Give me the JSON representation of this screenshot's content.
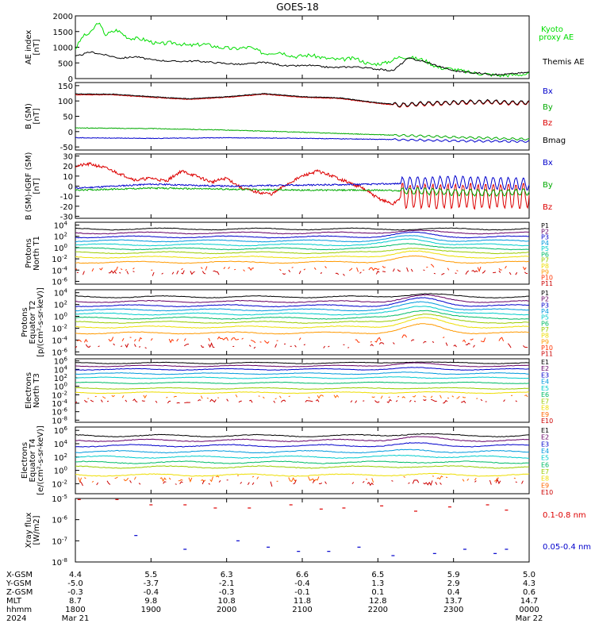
{
  "figure": {
    "title": "GOES-18",
    "x_axis": {
      "time_range": [
        "2024-03-21 18:00",
        "2024-03-22 00:00"
      ],
      "tick_times": [
        "1800",
        "1900",
        "2000",
        "2100",
        "2200",
        "2300",
        "0000"
      ],
      "row_labels": [
        "X-GSM",
        "Y-GSM",
        "Z-GSM",
        "MLT",
        "hhmm",
        "2024"
      ],
      "rows": [
        [
          "4.4",
          "5.5",
          "6.3",
          "6.6",
          "6.5",
          "5.9",
          "5.0"
        ],
        [
          "-5.0",
          "-3.7",
          "-2.1",
          "-0.4",
          "1.3",
          "2.9",
          "4.3"
        ],
        [
          "-0.3",
          "-0.4",
          "-0.3",
          "-0.1",
          "0.1",
          "0.4",
          "0.6"
        ],
        [
          "8.7",
          "9.8",
          "10.8",
          "11.8",
          "12.8",
          "13.7",
          "14.7"
        ],
        [
          "1800",
          "1900",
          "2000",
          "2100",
          "2200",
          "2300",
          "0000"
        ]
      ],
      "date_start": "Mar 21",
      "date_end": "Mar 22"
    }
  },
  "chart_data": [
    {
      "panel": "ae",
      "type": "line",
      "ylabel": "AE index [nT]",
      "ylim": [
        0,
        2000
      ],
      "yticks": [
        "0",
        "500",
        "1000",
        "1500",
        "2000"
      ],
      "legend": [
        {
          "label": "Kyoto proxy AE",
          "color": "#00dd00"
        },
        {
          "label": "Themis AE",
          "color": "#000000"
        }
      ],
      "series": [
        {
          "name": "Kyoto proxy AE",
          "color": "#00dd00",
          "x_hours": [
            18.0,
            18.1,
            18.2,
            18.3,
            18.4,
            18.55,
            18.7,
            18.9,
            19.1,
            19.3,
            19.5,
            19.7,
            19.9,
            20.1,
            20.3,
            20.5,
            20.7,
            20.9,
            21.1,
            21.3,
            21.5,
            21.7,
            21.9,
            22.1,
            22.2,
            22.3,
            22.4,
            22.6,
            22.8,
            23.0,
            23.2,
            23.4,
            23.6,
            23.8,
            24.0
          ],
          "values": [
            950,
            1350,
            1450,
            1800,
            1400,
            1550,
            1300,
            1250,
            1100,
            1150,
            1050,
            1100,
            1000,
            950,
            1000,
            800,
            850,
            700,
            750,
            650,
            600,
            650,
            450,
            500,
            600,
            700,
            680,
            600,
            350,
            300,
            200,
            150,
            100,
            120,
            150
          ]
        },
        {
          "name": "Themis AE",
          "color": "#000000",
          "x_hours": [
            18.0,
            18.2,
            18.4,
            18.6,
            18.8,
            19.0,
            19.3,
            19.6,
            19.9,
            20.2,
            20.5,
            20.8,
            21.1,
            21.4,
            21.7,
            22.0,
            22.2,
            22.4,
            22.6,
            22.8,
            23.0,
            23.3,
            23.6,
            24.0
          ],
          "values": [
            700,
            850,
            750,
            650,
            700,
            600,
            550,
            560,
            500,
            450,
            520,
            400,
            420,
            350,
            380,
            300,
            250,
            650,
            550,
            400,
            250,
            180,
            120,
            200
          ]
        }
      ]
    },
    {
      "panel": "b_sm",
      "type": "line",
      "ylabel": "B (SM) [nT]",
      "ylim": [
        -60,
        160
      ],
      "yticks": [
        "-50",
        "0",
        "50",
        "100",
        "150"
      ],
      "legend": [
        {
          "label": "Bx",
          "color": "#0000cc"
        },
        {
          "label": "By",
          "color": "#00aa00"
        },
        {
          "label": "Bz",
          "color": "#dd0000"
        },
        {
          "label": "Bmag",
          "color": "#000000"
        }
      ],
      "series": [
        {
          "name": "Bz",
          "color": "#dd0000",
          "x_hours": [
            18.0,
            18.5,
            19.0,
            19.5,
            20.0,
            20.5,
            21.0,
            21.5,
            22.0,
            22.3,
            22.6,
            22.9,
            23.2,
            23.5,
            23.8,
            24.0
          ],
          "values": [
            120,
            120,
            112,
            105,
            112,
            122,
            112,
            108,
            92,
            85,
            90,
            92,
            95,
            96,
            92,
            94
          ]
        },
        {
          "name": "Bmag",
          "color": "#000000",
          "x_hours": [
            18.0,
            18.5,
            19.0,
            19.5,
            20.0,
            20.5,
            21.0,
            21.5,
            22.0,
            22.3,
            22.6,
            22.9,
            23.2,
            23.5,
            23.8,
            24.0
          ],
          "values": [
            123,
            122,
            114,
            107,
            114,
            124,
            114,
            110,
            94,
            87,
            92,
            94,
            97,
            98,
            94,
            96
          ]
        },
        {
          "name": "By",
          "color": "#00aa00",
          "x_hours": [
            18.0,
            19.0,
            20.0,
            21.0,
            22.0,
            23.0,
            24.0
          ],
          "values": [
            12,
            10,
            5,
            -2,
            -10,
            -18,
            -25
          ]
        },
        {
          "name": "Bx",
          "color": "#0000cc",
          "x_hours": [
            18.0,
            19.0,
            20.0,
            21.0,
            22.0,
            23.0,
            24.0
          ],
          "values": [
            -20,
            -22,
            -20,
            -22,
            -25,
            -30,
            -32
          ]
        }
      ]
    },
    {
      "panel": "b_minus_igrf",
      "type": "line",
      "ylabel": "B (SM)-IGRF (SM) [nT]",
      "ylim": [
        -32,
        32
      ],
      "yticks": [
        "-30",
        "-20",
        "-10",
        "0",
        "10",
        "20",
        "30"
      ],
      "legend": [
        {
          "label": "Bx",
          "color": "#0000cc"
        },
        {
          "label": "By",
          "color": "#00aa00"
        },
        {
          "label": "Bz",
          "color": "#dd0000"
        }
      ],
      "series": [
        {
          "name": "Bz",
          "color": "#dd0000",
          "x_hours": [
            18.0,
            18.2,
            18.4,
            18.6,
            18.8,
            19.0,
            19.2,
            19.4,
            19.6,
            19.8,
            20.0,
            20.2,
            20.4,
            20.6,
            20.8,
            21.0,
            21.2,
            21.4,
            21.6,
            21.8,
            22.0,
            22.2,
            22.4,
            22.6
          ],
          "values": [
            20,
            22,
            18,
            12,
            6,
            8,
            5,
            15,
            10,
            4,
            8,
            -2,
            -6,
            -8,
            2,
            10,
            15,
            10,
            4,
            -2,
            -12,
            -18,
            -5,
            -15
          ]
        },
        {
          "name": "Bx",
          "color": "#0000cc",
          "x_hours": [
            18.0,
            19.0,
            20.0,
            21.0,
            22.0,
            22.5,
            23.0,
            23.5,
            24.0
          ],
          "values": [
            -2,
            2,
            0,
            1,
            2,
            3,
            4,
            3,
            2
          ]
        },
        {
          "name": "By",
          "color": "#00aa00",
          "x_hours": [
            18.0,
            19.0,
            20.0,
            21.0,
            22.0,
            22.5,
            23.0,
            23.5,
            24.0
          ],
          "values": [
            -4,
            -2,
            -3,
            -4,
            -4,
            -5,
            -6,
            -7,
            -6
          ]
        }
      ]
    },
    {
      "panel": "protons_north",
      "type": "line",
      "scale": "log",
      "ylabel": "Protons North T1",
      "ylim_exp": [
        -6.5,
        4.5
      ],
      "ytick_exps": [
        4,
        2,
        0,
        -2,
        -4,
        -6
      ],
      "legend": [
        {
          "label": "P1",
          "color": "#000000"
        },
        {
          "label": "P2",
          "color": "#660066"
        },
        {
          "label": "P3",
          "color": "#0000cc"
        },
        {
          "label": "P4",
          "color": "#0099dd"
        },
        {
          "label": "P5",
          "color": "#00cccc"
        },
        {
          "label": "P6",
          "color": "#00bb66"
        },
        {
          "label": "P7",
          "color": "#99cc00"
        },
        {
          "label": "P8",
          "color": "#eedd00"
        },
        {
          "label": "P9",
          "color": "#ff9900"
        },
        {
          "label": "P10",
          "color": "#ff3300"
        },
        {
          "label": "P11",
          "color": "#cc0000"
        }
      ],
      "levels_log10": [
        3.3,
        2.6,
        1.9,
        1.2,
        0.5,
        -0.2,
        -0.9,
        -1.7,
        -2.6,
        -3.8,
        -4.5
      ],
      "bump_peak_log10": [
        3.3,
        3.0,
        2.6,
        2.0,
        1.5,
        0.8,
        0.0,
        -0.6,
        -1.6,
        -3.0,
        -4.0
      ]
    },
    {
      "panel": "protons_equator",
      "type": "line",
      "scale": "log",
      "ylabel": "Protons Equator T2 [p/(cm²-s-sr-keV)]",
      "ylim_exp": [
        -6.5,
        4.5
      ],
      "ytick_exps": [
        4,
        2,
        0,
        -2,
        -4,
        -6
      ],
      "legend": [
        {
          "label": "P1",
          "color": "#000000"
        },
        {
          "label": "P2",
          "color": "#660066"
        },
        {
          "label": "P3",
          "color": "#0000cc"
        },
        {
          "label": "P4",
          "color": "#0099dd"
        },
        {
          "label": "P5",
          "color": "#00cccc"
        },
        {
          "label": "P6",
          "color": "#00bb66"
        },
        {
          "label": "P7",
          "color": "#99cc00"
        },
        {
          "label": "P8",
          "color": "#eedd00"
        },
        {
          "label": "P9",
          "color": "#ff9900"
        },
        {
          "label": "P10",
          "color": "#ff3300"
        },
        {
          "label": "P11",
          "color": "#cc0000"
        }
      ],
      "levels_log10": [
        3.3,
        2.5,
        1.8,
        1.1,
        0.4,
        -0.3,
        -1.0,
        -1.8,
        -2.8,
        -4.0,
        -5.0
      ],
      "bump_peak_log10": [
        3.8,
        3.5,
        3.0,
        2.4,
        1.8,
        1.1,
        0.4,
        -0.3,
        -1.4,
        -3.2,
        -4.2
      ]
    },
    {
      "panel": "electrons_north",
      "type": "line",
      "scale": "log",
      "ylabel": "Electrons North T3",
      "ylim_exp": [
        -8.5,
        6.5
      ],
      "ytick_exps": [
        6,
        4,
        2,
        0,
        -2,
        -4,
        -6,
        -8
      ],
      "legend": [
        {
          "label": "E1",
          "color": "#000000"
        },
        {
          "label": "E2",
          "color": "#660066"
        },
        {
          "label": "E3",
          "color": "#0000cc"
        },
        {
          "label": "E4",
          "color": "#0099dd"
        },
        {
          "label": "E5",
          "color": "#00cccc"
        },
        {
          "label": "E6",
          "color": "#00bb66"
        },
        {
          "label": "E7",
          "color": "#99cc00"
        },
        {
          "label": "E8",
          "color": "#eedd00"
        },
        {
          "label": "E9",
          "color": "#ff6600"
        },
        {
          "label": "E10",
          "color": "#cc0000"
        }
      ],
      "levels_log10": [
        5.5,
        4.8,
        4.0,
        3.0,
        2.0,
        0.8,
        -0.5,
        -1.5,
        -2.5,
        -3.5
      ],
      "bump_peak_log10": [
        5.8,
        5.5,
        4.3,
        3.2,
        2.1,
        0.9,
        -0.4,
        -1.4,
        -2.5,
        -3.5
      ]
    },
    {
      "panel": "electrons_equator",
      "type": "line",
      "scale": "log",
      "ylabel": "Electrons Equator T4 [e/(cm²-s-sr-keV)]",
      "ylim_exp": [
        -3.5,
        6.5
      ],
      "ytick_exps": [
        6,
        4,
        2,
        0,
        -2
      ],
      "legend": [
        {
          "label": "E1",
          "color": "#000000"
        },
        {
          "label": "E2",
          "color": "#660066"
        },
        {
          "label": "E3",
          "color": "#0000cc"
        },
        {
          "label": "E4",
          "color": "#0099dd"
        },
        {
          "label": "E5",
          "color": "#00cccc"
        },
        {
          "label": "E6",
          "color": "#00bb66"
        },
        {
          "label": "E7",
          "color": "#99cc00"
        },
        {
          "label": "E8",
          "color": "#eedd00"
        },
        {
          "label": "E9",
          "color": "#ff6600"
        },
        {
          "label": "E10",
          "color": "#cc0000"
        }
      ],
      "levels_log10": [
        5.2,
        4.5,
        3.7,
        2.8,
        2.0,
        1.2,
        0.5,
        -0.7,
        -1.3,
        -1.9
      ],
      "bump_peak_log10": [
        5.5,
        5.0,
        4.0,
        3.0,
        2.2,
        1.3,
        0.6,
        -0.6,
        -1.2,
        -1.8
      ]
    },
    {
      "panel": "xray",
      "type": "scatter",
      "scale": "log",
      "ylabel": "Xray flux [W/m2]",
      "ylim_exp": [
        -8,
        -5
      ],
      "ytick_exps": [
        -5,
        -6,
        -7,
        -8
      ],
      "legend": [
        {
          "label": "0.1-0.8 nm",
          "color": "#dd0000"
        },
        {
          "label": "0.05-0.4 nm",
          "color": "#0000cc"
        }
      ],
      "series": [
        {
          "name": "0.1-0.8 nm",
          "color": "#dd0000",
          "x_hours": [
            18.05,
            18.55,
            19.0,
            19.45,
            19.85,
            20.3,
            20.85,
            21.25,
            21.55,
            22.05,
            22.5,
            22.95,
            23.45,
            23.7
          ],
          "log10_values": [
            -5.05,
            -5.05,
            -5.3,
            -5.3,
            -5.45,
            -5.45,
            -5.3,
            -5.5,
            -5.45,
            -5.35,
            -5.6,
            -5.4,
            -5.3,
            -5.55
          ]
        },
        {
          "name": "0.05-0.4 nm",
          "color": "#0000cc",
          "x_hours": [
            18.8,
            19.45,
            20.15,
            20.55,
            20.95,
            21.35,
            21.75,
            22.2,
            22.75,
            23.15,
            23.55,
            23.7
          ],
          "log10_values": [
            -6.75,
            -7.4,
            -7.0,
            -7.3,
            -7.5,
            -7.5,
            -7.3,
            -7.7,
            -7.6,
            -7.4,
            -7.6,
            -7.4
          ]
        }
      ]
    }
  ]
}
